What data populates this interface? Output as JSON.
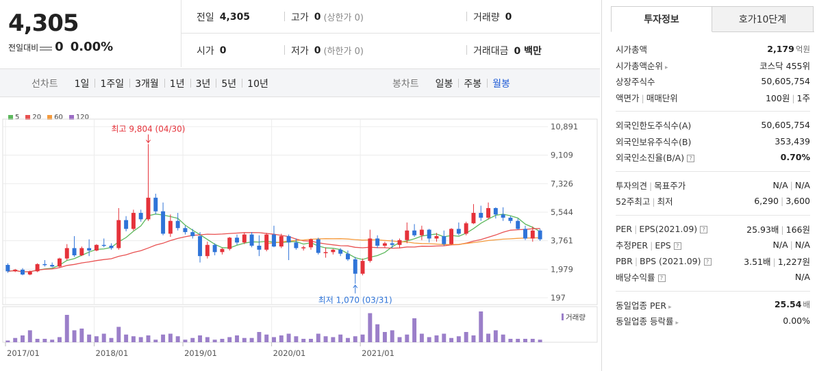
{
  "price": {
    "current": "4,305",
    "change_label": "전일대비",
    "change_value": "0",
    "change_pct": "0.00%"
  },
  "quote": {
    "prev_label": "전일",
    "prev_value": "4,305",
    "high_label": "고가",
    "high_value": "0",
    "high_sub": "(상한가 0)",
    "volume_label": "거래량",
    "volume_value": "0",
    "open_label": "시가",
    "open_value": "0",
    "low_label": "저가",
    "low_value": "0",
    "low_sub": "(하한가 0)",
    "amount_label": "거래대금",
    "amount_value": "0 백만"
  },
  "period_bar": {
    "line_label": "선차트",
    "line_options": [
      "1일",
      "1주일",
      "3개월",
      "1년",
      "3년",
      "5년",
      "10년"
    ],
    "candle_label": "봉차트",
    "candle_options": [
      "일봉",
      "주봉",
      "월봉"
    ],
    "active_candle": "월봉"
  },
  "chart_data": {
    "type": "candlestick",
    "legend": [
      {
        "name": "5",
        "color": "#5cb85c"
      },
      {
        "name": "20",
        "color": "#e85050"
      },
      {
        "name": "60",
        "color": "#f59a3c"
      },
      {
        "name": "120",
        "color": "#9b6cc4"
      }
    ],
    "y_ticks": [
      "10,891",
      "9,109",
      "7,326",
      "5,544",
      "3,761",
      "1,979",
      "197"
    ],
    "ylim": [
      197,
      10891
    ],
    "x_ticks": [
      "2017/01",
      "2018/01",
      "2019/01",
      "2020/01",
      "2021/01"
    ],
    "max_annotation": "최고 9,804 (04/30)",
    "min_annotation": "최저 1,070 (03/31)",
    "volume_label": "거래량",
    "up_color": "#e5323a",
    "down_color": "#2f74d8",
    "candles": [
      {
        "o": 2250,
        "h": 2350,
        "l": 1750,
        "c": 1850
      },
      {
        "o": 1850,
        "h": 2000,
        "l": 1800,
        "c": 1950
      },
      {
        "o": 1950,
        "h": 2050,
        "l": 1600,
        "c": 1650
      },
      {
        "o": 1650,
        "h": 1900,
        "l": 1600,
        "c": 1850
      },
      {
        "o": 1850,
        "h": 2350,
        "l": 1800,
        "c": 2300
      },
      {
        "o": 2300,
        "h": 2550,
        "l": 2150,
        "c": 2250
      },
      {
        "o": 2250,
        "h": 2400,
        "l": 2100,
        "c": 2150
      },
      {
        "o": 2150,
        "h": 2700,
        "l": 2100,
        "c": 2650
      },
      {
        "o": 2650,
        "h": 3550,
        "l": 2550,
        "c": 3300
      },
      {
        "o": 3300,
        "h": 4050,
        "l": 2750,
        "c": 2850
      },
      {
        "o": 2850,
        "h": 3400,
        "l": 2800,
        "c": 3300
      },
      {
        "o": 3300,
        "h": 3850,
        "l": 2800,
        "c": 3150
      },
      {
        "o": 3150,
        "h": 3550,
        "l": 3100,
        "c": 3500
      },
      {
        "o": 3500,
        "h": 3900,
        "l": 3350,
        "c": 3450
      },
      {
        "o": 3450,
        "h": 3600,
        "l": 3200,
        "c": 3300
      },
      {
        "o": 3300,
        "h": 5800,
        "l": 3200,
        "c": 5050
      },
      {
        "o": 5050,
        "h": 5300,
        "l": 4350,
        "c": 4500
      },
      {
        "o": 4500,
        "h": 5700,
        "l": 4400,
        "c": 5500
      },
      {
        "o": 5500,
        "h": 5700,
        "l": 4950,
        "c": 5100
      },
      {
        "o": 5100,
        "h": 9804,
        "l": 5000,
        "c": 6450
      },
      {
        "o": 6450,
        "h": 6700,
        "l": 5400,
        "c": 5600
      },
      {
        "o": 5600,
        "h": 6150,
        "l": 4100,
        "c": 4200
      },
      {
        "o": 4200,
        "h": 5400,
        "l": 4000,
        "c": 5000
      },
      {
        "o": 5000,
        "h": 5500,
        "l": 4400,
        "c": 4550
      },
      {
        "o": 4550,
        "h": 4700,
        "l": 4150,
        "c": 4300
      },
      {
        "o": 4300,
        "h": 4500,
        "l": 3900,
        "c": 4050
      },
      {
        "o": 4050,
        "h": 4300,
        "l": 2400,
        "c": 2800
      },
      {
        "o": 2800,
        "h": 3700,
        "l": 2650,
        "c": 3500
      },
      {
        "o": 3500,
        "h": 3600,
        "l": 2850,
        "c": 3050
      },
      {
        "o": 3050,
        "h": 3300,
        "l": 2900,
        "c": 3250
      },
      {
        "o": 3250,
        "h": 4000,
        "l": 3150,
        "c": 3950
      },
      {
        "o": 3950,
        "h": 4150,
        "l": 3500,
        "c": 3650
      },
      {
        "o": 3650,
        "h": 4250,
        "l": 3550,
        "c": 4150
      },
      {
        "o": 4150,
        "h": 4300,
        "l": 3350,
        "c": 3450
      },
      {
        "o": 3450,
        "h": 4100,
        "l": 2800,
        "c": 3200
      },
      {
        "o": 3200,
        "h": 4250,
        "l": 3100,
        "c": 4150
      },
      {
        "o": 4150,
        "h": 4700,
        "l": 3350,
        "c": 3400
      },
      {
        "o": 3400,
        "h": 4200,
        "l": 3300,
        "c": 4050
      },
      {
        "o": 4050,
        "h": 4150,
        "l": 2550,
        "c": 3650
      },
      {
        "o": 3650,
        "h": 3900,
        "l": 3200,
        "c": 3300
      },
      {
        "o": 3300,
        "h": 3450,
        "l": 3150,
        "c": 3350
      },
      {
        "o": 3350,
        "h": 3900,
        "l": 3200,
        "c": 3850
      },
      {
        "o": 3850,
        "h": 3950,
        "l": 2900,
        "c": 3000
      },
      {
        "o": 3000,
        "h": 3350,
        "l": 2700,
        "c": 3050
      },
      {
        "o": 3050,
        "h": 3250,
        "l": 2900,
        "c": 3200
      },
      {
        "o": 3200,
        "h": 3300,
        "l": 2800,
        "c": 2950
      },
      {
        "o": 2950,
        "h": 3150,
        "l": 2500,
        "c": 2600
      },
      {
        "o": 2600,
        "h": 2750,
        "l": 1070,
        "c": 1700
      },
      {
        "o": 1700,
        "h": 2650,
        "l": 1600,
        "c": 2500
      },
      {
        "o": 2500,
        "h": 4450,
        "l": 2400,
        "c": 3900
      },
      {
        "o": 3900,
        "h": 4100,
        "l": 3300,
        "c": 3450
      },
      {
        "o": 3450,
        "h": 3700,
        "l": 3300,
        "c": 3600
      },
      {
        "o": 3600,
        "h": 3850,
        "l": 3300,
        "c": 3500
      },
      {
        "o": 3500,
        "h": 3900,
        "l": 3300,
        "c": 3800
      },
      {
        "o": 3800,
        "h": 4900,
        "l": 3600,
        "c": 4400
      },
      {
        "o": 4400,
        "h": 4800,
        "l": 4000,
        "c": 4100
      },
      {
        "o": 4100,
        "h": 4700,
        "l": 3800,
        "c": 4450
      },
      {
        "o": 4450,
        "h": 4500,
        "l": 3650,
        "c": 3900
      },
      {
        "o": 3900,
        "h": 4250,
        "l": 3700,
        "c": 4050
      },
      {
        "o": 4050,
        "h": 4400,
        "l": 3450,
        "c": 3550
      },
      {
        "o": 3550,
        "h": 4550,
        "l": 3500,
        "c": 4500
      },
      {
        "o": 4500,
        "h": 4900,
        "l": 4100,
        "c": 4200
      },
      {
        "o": 4200,
        "h": 4950,
        "l": 4100,
        "c": 4850
      },
      {
        "o": 4850,
        "h": 6050,
        "l": 4800,
        "c": 5500
      },
      {
        "o": 5500,
        "h": 5950,
        "l": 5000,
        "c": 5200
      },
      {
        "o": 5200,
        "h": 6150,
        "l": 5100,
        "c": 5800
      },
      {
        "o": 5800,
        "h": 5850,
        "l": 5150,
        "c": 5400
      },
      {
        "o": 5400,
        "h": 5850,
        "l": 5000,
        "c": 5200
      },
      {
        "o": 5200,
        "h": 5300,
        "l": 4850,
        "c": 5000
      },
      {
        "o": 5000,
        "h": 5150,
        "l": 4450,
        "c": 4500
      },
      {
        "o": 4500,
        "h": 4700,
        "l": 3800,
        "c": 3900
      },
      {
        "o": 3900,
        "h": 4650,
        "l": 3700,
        "c": 4400
      },
      {
        "o": 4400,
        "h": 4500,
        "l": 3750,
        "c": 3850
      }
    ],
    "volume": [
      2,
      5,
      8,
      14,
      4,
      4,
      3,
      6,
      32,
      14,
      16,
      9,
      7,
      10,
      5,
      18,
      9,
      7,
      6,
      8,
      3,
      9,
      10,
      7,
      3,
      5,
      8,
      6,
      3,
      4,
      6,
      8,
      5,
      5,
      12,
      9,
      6,
      8,
      10,
      7,
      4,
      4,
      10,
      7,
      6,
      9,
      5,
      7,
      9,
      34,
      21,
      12,
      14,
      6,
      9,
      28,
      10,
      6,
      8,
      10,
      5,
      7,
      12,
      8,
      36,
      10,
      14,
      9,
      4,
      4,
      4,
      4,
      3
    ]
  },
  "tabs": [
    "투자정보",
    "호가10단계"
  ],
  "invest": {
    "g1": [
      {
        "k": "시가총액",
        "v": "2,179",
        "unit": "억원"
      },
      {
        "k": "시가총액순위",
        "v": "코스닥 455위",
        "arrow": true
      },
      {
        "k": "상장주식수",
        "v": "50,605,754"
      },
      {
        "k1": "액면가",
        "k2": "매매단위",
        "v": "100원",
        "v2": "1주"
      }
    ],
    "g2": [
      {
        "k": "외국인한도주식수(A)",
        "v": "50,605,754"
      },
      {
        "k": "외국인보유주식수(B)",
        "v": "353,439"
      },
      {
        "k": "외국인소진율(B/A)",
        "v": "0.70%",
        "q": true,
        "bold": true
      }
    ],
    "g3": [
      {
        "k1": "투자의견",
        "k2": "목표주가",
        "v": "N/A",
        "v2": "N/A"
      },
      {
        "k1": "52주최고",
        "k2": "최저",
        "v": "6,290",
        "v2": "3,600"
      }
    ],
    "g4": [
      {
        "k1": "PER",
        "k2": "EPS(2021.09)",
        "v": "25.93배",
        "v2": "166원",
        "q": true
      },
      {
        "k1": "추정PER",
        "k2": "EPS",
        "v": "N/A",
        "v2": "N/A",
        "q": true
      },
      {
        "k1": "PBR",
        "k2": "BPS (2021.09)",
        "v": "3.51배",
        "v2": "1,227원",
        "q": true
      },
      {
        "k": "배당수익률",
        "v": "N/A",
        "q": true
      }
    ],
    "g5": [
      {
        "k": "동일업종 PER",
        "v": "25.54",
        "unit": "배",
        "arrow": true,
        "bold": true
      },
      {
        "k": "동일업종 등락률",
        "v": "0.00%",
        "arrow": true
      }
    ]
  }
}
